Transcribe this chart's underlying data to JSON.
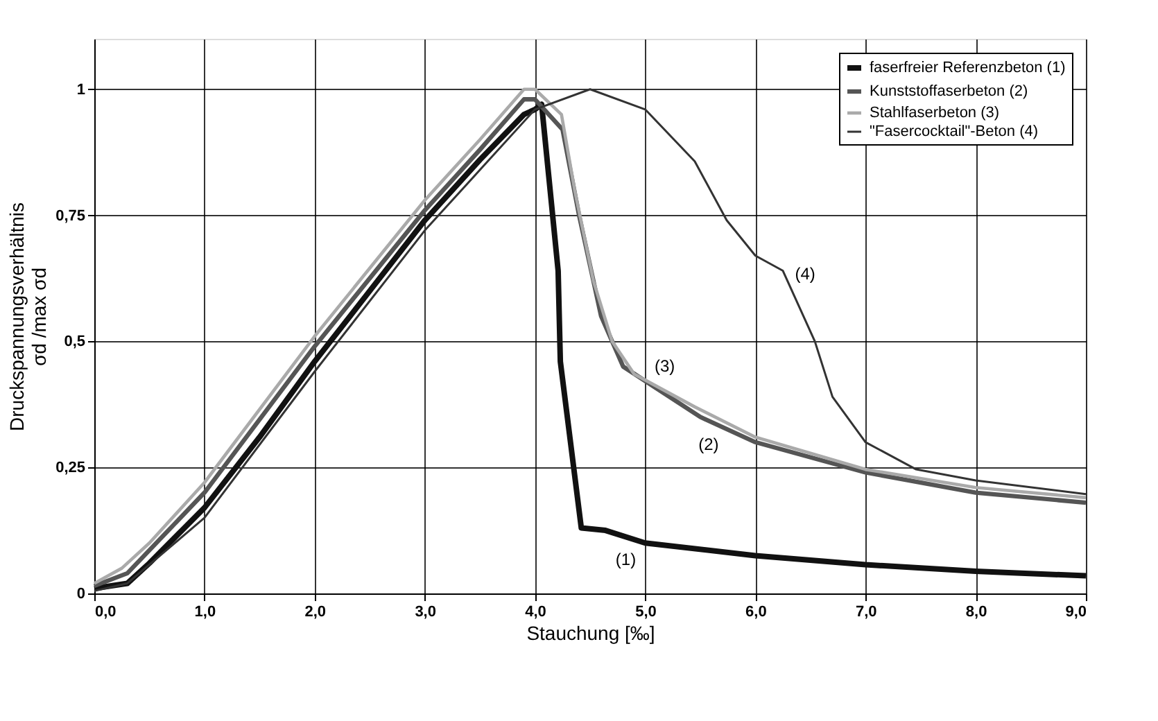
{
  "chart_data": {
    "type": "line",
    "xlabel": "Stauchung [‰]",
    "ylabel": "Druckspannungsverhältnis\nσd /max σd",
    "xlim": [
      0,
      9
    ],
    "ylim": [
      0,
      1.1
    ],
    "xticks": [
      {
        "value": 0,
        "label": "0,0"
      },
      {
        "value": 1,
        "label": "1,0"
      },
      {
        "value": 2,
        "label": "2,0"
      },
      {
        "value": 3,
        "label": "3,0"
      },
      {
        "value": 4,
        "label": "4,0"
      },
      {
        "value": 5,
        "label": "5,0"
      },
      {
        "value": 6,
        "label": "6,0"
      },
      {
        "value": 7,
        "label": "7,0"
      },
      {
        "value": 8,
        "label": "8,0"
      },
      {
        "value": 9,
        "label": "9,0"
      }
    ],
    "yticks": [
      0,
      {
        "value": 0.25,
        "label": "0,25"
      },
      {
        "value": 0.5,
        "label": "0,5"
      },
      {
        "value": 0.75,
        "label": "0,75"
      },
      1
    ],
    "grid": true,
    "legend": "top right",
    "marker": "none",
    "line_style": "solid",
    "series": [
      {
        "name": "faserfreier Referenzbeton (1)",
        "color": "#111111",
        "x": [
          0,
          0.3,
          0.5,
          1.0,
          1.5,
          2.0,
          2.5,
          3.0,
          3.5,
          3.9,
          4.0,
          4.06,
          4.21,
          4.23,
          4.42,
          4.64,
          5.0,
          6.0,
          7.0,
          8.0,
          9.0
        ],
        "values": [
          0.01,
          0.02,
          0.06,
          0.17,
          0.31,
          0.46,
          0.6,
          0.74,
          0.86,
          0.95,
          0.96,
          0.97,
          0.64,
          0.46,
          0.13,
          0.125,
          0.1,
          0.075,
          0.057,
          0.044,
          0.035
        ]
      },
      {
        "name": "Kunststoffaserbeton (2)",
        "color": "#555555",
        "x": [
          0,
          0.3,
          1.0,
          2.0,
          3.0,
          3.5,
          3.9,
          4.0,
          4.25,
          4.4,
          4.6,
          4.8,
          5.5,
          6.0,
          7.0,
          8.0,
          9.0
        ],
        "values": [
          0.015,
          0.04,
          0.2,
          0.49,
          0.76,
          0.88,
          0.98,
          0.98,
          0.92,
          0.75,
          0.55,
          0.45,
          0.35,
          0.3,
          0.24,
          0.2,
          0.18
        ]
      },
      {
        "name": "Stahlfaserbeton (3)",
        "color": "#aaaaaa",
        "x": [
          0,
          0.25,
          0.5,
          1.0,
          2.0,
          3.0,
          3.5,
          3.9,
          4.0,
          4.24,
          4.36,
          4.53,
          4.7,
          4.9,
          5.45,
          6.0,
          7.0,
          8.0,
          9.0
        ],
        "values": [
          0.02,
          0.05,
          0.1,
          0.22,
          0.51,
          0.78,
          0.9,
          1.0,
          1.0,
          0.95,
          0.8,
          0.62,
          0.5,
          0.435,
          0.37,
          0.31,
          0.246,
          0.21,
          0.19
        ]
      },
      {
        "name": "\"Fasercocktail\"-Beton (4)",
        "color": "#333333",
        "x": [
          0,
          0.3,
          1.0,
          2.0,
          3.0,
          3.5,
          4.0,
          4.5,
          5.0,
          5.45,
          5.74,
          6.0,
          6.25,
          6.54,
          6.7,
          7.0,
          7.46,
          8.0,
          9.0
        ],
        "values": [
          0.005,
          0.02,
          0.15,
          0.44,
          0.72,
          0.84,
          0.96,
          1.0,
          0.96,
          0.857,
          0.74,
          0.67,
          0.64,
          0.5,
          0.39,
          0.3,
          0.246,
          0.224,
          0.197
        ]
      }
    ],
    "annotations": [
      {
        "text": "(1)",
        "x": 5.0,
        "y": 0.1
      },
      {
        "text": "(2)",
        "x": 5.5,
        "y": 0.35
      },
      {
        "text": "(3)",
        "x": 4.9,
        "y": 0.435
      },
      {
        "text": "(4)",
        "x": 6.25,
        "y": 0.64
      }
    ]
  }
}
